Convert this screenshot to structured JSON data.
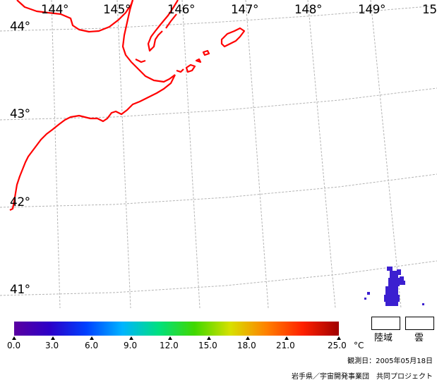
{
  "map": {
    "lon_labels": [
      "144°",
      "145°",
      "146°",
      "147°",
      "148°",
      "149°",
      "15"
    ],
    "lat_labels": [
      "44°",
      "43°",
      "42°",
      "41°"
    ],
    "colors": {
      "coastline": "#ff0000",
      "graticule": "#b4b4b4",
      "data_cells": "#3b1fd0"
    }
  },
  "colorbar": {
    "unit": "°C",
    "ticks": [
      "0.0",
      "3.0",
      "6.0",
      "9.0",
      "12.0",
      "15.0",
      "18.0",
      "21.0",
      "25.0"
    ],
    "colors": [
      "#5a00a0",
      "#2c00c8",
      "#0040ff",
      "#00b4ff",
      "#00e080",
      "#40d800",
      "#d8e000",
      "#ff8000",
      "#ff2000",
      "#a00000"
    ]
  },
  "legend": {
    "land_label": "陸域",
    "cloud_label": "雲"
  },
  "footer": {
    "observation_date": "観測日：2005年05月18日",
    "credit": "岩手県／宇宙開発事業団　共同プロジェクト"
  }
}
